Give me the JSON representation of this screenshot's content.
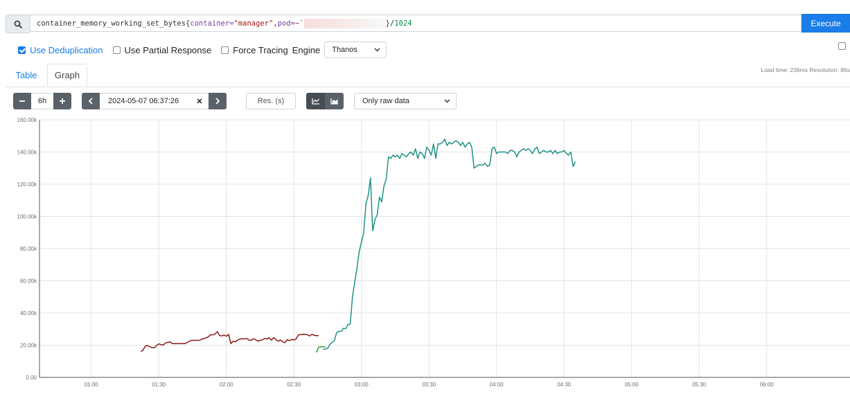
{
  "query": {
    "metric": "container_memory_working_set_bytes",
    "label_container": "container=",
    "value_container": "\"manager\"",
    "label_pod": "pod=",
    "value_pod_prefix": "~`",
    "suffix_close": "}/",
    "divisor": "1024"
  },
  "execute_label": "Execute",
  "options": {
    "dedup_label": "Use Deduplication",
    "dedup_checked": true,
    "partial_label": "Use Partial Response",
    "partial_checked": false,
    "tracing_label": "Force Tracing",
    "tracing_checked": false,
    "engine_label": "Engine",
    "engine_value": "Thanos"
  },
  "load_info": "Load time: 236ms   Resolution: 86s",
  "tabs": {
    "table": "Table",
    "graph": "Graph"
  },
  "controls": {
    "range": "6h",
    "end_time": "2024-05-07 06:37:26",
    "resolution_placeholder": "Res. (s)",
    "raw_select": "Only raw data"
  },
  "colors": {
    "accent": "#1a7de8",
    "series_1": "#8b1a1a",
    "series_2": "#2e9e2e",
    "series_3": "#1f9184"
  },
  "chart_data": {
    "type": "line",
    "title": "",
    "xlabel": "",
    "ylabel": "",
    "x_ticks": [
      "01:00",
      "01:30",
      "02:00",
      "02:30",
      "03:00",
      "03:30",
      "04:00",
      "04:30",
      "05:00",
      "05:30",
      "06:00"
    ],
    "y_ticks": [
      "0.00",
      "20.00k",
      "40.00k",
      "60.00k",
      "80.00k",
      "100.00k",
      "120.00k",
      "140.00k",
      "160.00k"
    ],
    "xlim_minutes_after_midnight": [
      37,
      397
    ],
    "ylim": [
      0,
      160000
    ],
    "grid": true,
    "legend": "none",
    "series": [
      {
        "color": "#8b1a1a",
        "points": [
          [
            82,
            16000
          ],
          [
            83,
            17000
          ],
          [
            84,
            19500
          ],
          [
            85,
            19800
          ],
          [
            86,
            19000
          ],
          [
            87,
            18500
          ],
          [
            88,
            18400
          ],
          [
            89,
            19800
          ],
          [
            90,
            20800
          ],
          [
            91,
            20300
          ],
          [
            92,
            20100
          ],
          [
            93,
            21500
          ],
          [
            94,
            21700
          ],
          [
            95,
            22100
          ],
          [
            96,
            21000
          ],
          [
            97,
            21000
          ],
          [
            98,
            21000
          ],
          [
            99,
            21000
          ],
          [
            100,
            21000
          ],
          [
            101,
            21000
          ],
          [
            102,
            21200
          ],
          [
            103,
            22000
          ],
          [
            104,
            22800
          ],
          [
            105,
            23000
          ],
          [
            106,
            23000
          ],
          [
            107,
            23000
          ],
          [
            108,
            23000
          ],
          [
            109,
            23700
          ],
          [
            110,
            24100
          ],
          [
            111,
            24600
          ],
          [
            112,
            25200
          ],
          [
            113,
            26600
          ],
          [
            114,
            26400
          ],
          [
            115,
            27000
          ],
          [
            116,
            28400
          ],
          [
            117,
            26000
          ],
          [
            118,
            25800
          ],
          [
            119,
            26200
          ],
          [
            120,
            25600
          ],
          [
            121,
            26700
          ],
          [
            122,
            21000
          ],
          [
            123,
            22400
          ],
          [
            124,
            22100
          ],
          [
            125,
            23200
          ],
          [
            126,
            23800
          ],
          [
            127,
            24000
          ],
          [
            128,
            23900
          ],
          [
            129,
            24200
          ],
          [
            130,
            23200
          ],
          [
            131,
            23000
          ],
          [
            132,
            24000
          ],
          [
            133,
            23500
          ],
          [
            134,
            22500
          ],
          [
            135,
            23000
          ],
          [
            136,
            23300
          ],
          [
            137,
            24200
          ],
          [
            138,
            23800
          ],
          [
            139,
            24600
          ],
          [
            140,
            23100
          ],
          [
            141,
            24700
          ],
          [
            142,
            23500
          ],
          [
            143,
            22500
          ],
          [
            144,
            23200
          ],
          [
            145,
            22100
          ],
          [
            146,
            21600
          ],
          [
            147,
            23500
          ],
          [
            148,
            22800
          ],
          [
            149,
            23600
          ],
          [
            150,
            23200
          ],
          [
            151,
            24000
          ],
          [
            152,
            26400
          ],
          [
            153,
            26600
          ],
          [
            154,
            26800
          ],
          [
            155,
            26700
          ],
          [
            156,
            26500
          ],
          [
            157,
            25700
          ],
          [
            158,
            26800
          ],
          [
            159,
            26100
          ],
          [
            160,
            25900
          ],
          [
            161,
            26000
          ]
        ]
      },
      {
        "color": "#2e9e2e",
        "points": [
          [
            160,
            15500
          ],
          [
            161,
            18800
          ],
          [
            162,
            19000
          ],
          [
            163,
            19000
          ],
          [
            164,
            18900
          ]
        ]
      },
      {
        "color": "#1f9184",
        "points": [
          [
            163,
            17500
          ],
          [
            164,
            17500
          ],
          [
            165,
            18100
          ],
          [
            166,
            20500
          ],
          [
            168,
            23000
          ],
          [
            169,
            28000
          ],
          [
            170,
            28500
          ],
          [
            171,
            28700
          ],
          [
            172,
            30500
          ],
          [
            173,
            30200
          ],
          [
            174,
            32800
          ],
          [
            175,
            33000
          ],
          [
            176,
            50000
          ],
          [
            178,
            68000
          ],
          [
            179,
            78000
          ],
          [
            181,
            90000
          ],
          [
            182,
            108000
          ],
          [
            183,
            113000
          ],
          [
            184,
            124000
          ],
          [
            185,
            91000
          ],
          [
            186,
            98000
          ],
          [
            187,
            101000
          ],
          [
            188,
            112000
          ],
          [
            189,
            109000
          ],
          [
            190,
            119000
          ],
          [
            191,
            123000
          ],
          [
            192,
            137000
          ],
          [
            193,
            136000
          ],
          [
            194,
            138000
          ],
          [
            195,
            137000
          ],
          [
            196,
            138000
          ],
          [
            197,
            136000
          ],
          [
            198,
            139000
          ],
          [
            199,
            138000
          ],
          [
            200,
            137000
          ],
          [
            201,
            139000
          ],
          [
            202,
            140000
          ],
          [
            203,
            138000
          ],
          [
            204,
            142000
          ],
          [
            205,
            136000
          ],
          [
            206,
            140000
          ],
          [
            207,
            139000
          ],
          [
            208,
            136000
          ],
          [
            209,
            143000
          ],
          [
            210,
            141000
          ],
          [
            211,
            138000
          ],
          [
            212,
            145000
          ],
          [
            213,
            136000
          ],
          [
            214,
            145000
          ],
          [
            215,
            145000
          ],
          [
            216,
            146000
          ],
          [
            217,
            148000
          ],
          [
            218,
            144000
          ],
          [
            219,
            146000
          ],
          [
            220,
            145000
          ],
          [
            221,
            146000
          ],
          [
            222,
            147000
          ],
          [
            223,
            146000
          ],
          [
            224,
            144000
          ],
          [
            225,
            146000
          ],
          [
            226,
            143000
          ],
          [
            227,
            145000
          ],
          [
            228,
            146000
          ],
          [
            229,
            143000
          ],
          [
            230,
            130000
          ],
          [
            231,
            131000
          ],
          [
            232,
            132000
          ],
          [
            233,
            132000
          ],
          [
            234,
            132000
          ],
          [
            235,
            133000
          ],
          [
            236,
            131000
          ],
          [
            237,
            132000
          ],
          [
            238,
            142000
          ],
          [
            239,
            143000
          ],
          [
            240,
            139000
          ],
          [
            241,
            140000
          ],
          [
            242,
            140000
          ],
          [
            243,
            140000
          ],
          [
            244,
            140000
          ],
          [
            245,
            139000
          ],
          [
            246,
            141000
          ],
          [
            247,
            141000
          ],
          [
            248,
            140000
          ],
          [
            249,
            137000
          ],
          [
            250,
            140000
          ],
          [
            251,
            141000
          ],
          [
            252,
            142000
          ],
          [
            253,
            141000
          ],
          [
            254,
            142000
          ],
          [
            255,
            141000
          ],
          [
            256,
            139000
          ],
          [
            257,
            142000
          ],
          [
            258,
            143000
          ],
          [
            259,
            139000
          ],
          [
            260,
            140000
          ],
          [
            261,
            141000
          ],
          [
            262,
            140000
          ],
          [
            263,
            140000
          ],
          [
            264,
            141000
          ],
          [
            265,
            139000
          ],
          [
            266,
            141000
          ],
          [
            267,
            139000
          ],
          [
            268,
            140000
          ],
          [
            269,
            140000
          ],
          [
            270,
            141000
          ],
          [
            271,
            139000
          ],
          [
            272,
            138000
          ],
          [
            273,
            140000
          ],
          [
            274,
            131000
          ],
          [
            275,
            134000
          ]
        ]
      }
    ]
  }
}
